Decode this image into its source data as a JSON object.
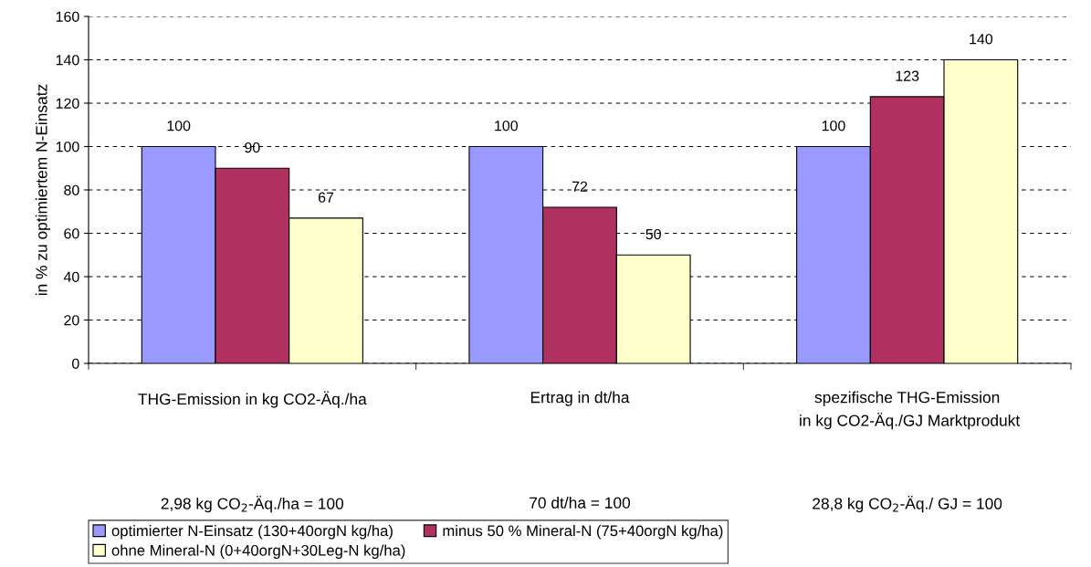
{
  "chart_data": {
    "type": "bar",
    "ylabel": "in % zu optimiertem N-Einsatz",
    "categories": [
      "THG-Emission in kg CO2-Äq./ha",
      "Ertrag in dt/ha",
      "spezifische THG-Emission\n in kg CO2-Äq./GJ Marktprodukt"
    ],
    "series": [
      {
        "name": "optimierter N-Einsatz (130+40orgN kg/ha)",
        "color": "#9999ff",
        "values": [
          100,
          100,
          100
        ]
      },
      {
        "name": "minus 50 % Mineral-N (75+40orgN kg/ha)",
        "color": "#b03060",
        "values": [
          90,
          72,
          123
        ]
      },
      {
        "name": "ohne Mineral-N (0+40orgN+30Leg-N kg/ha)",
        "color": "#ffffcc",
        "values": [
          67,
          50,
          140
        ]
      }
    ],
    "ylim": [
      0,
      160
    ],
    "yticks": [
      0,
      20,
      40,
      60,
      80,
      100,
      120,
      140,
      160
    ],
    "grid": "y",
    "data_labels": true,
    "legend": "bottom",
    "annotations": [
      "2,98 kg CO$_{2}$-Äq./ha = 100",
      "70 dt/ha = 100",
      "28,8 kg CO$_{2}$-Äq./ GJ = 100"
    ]
  }
}
